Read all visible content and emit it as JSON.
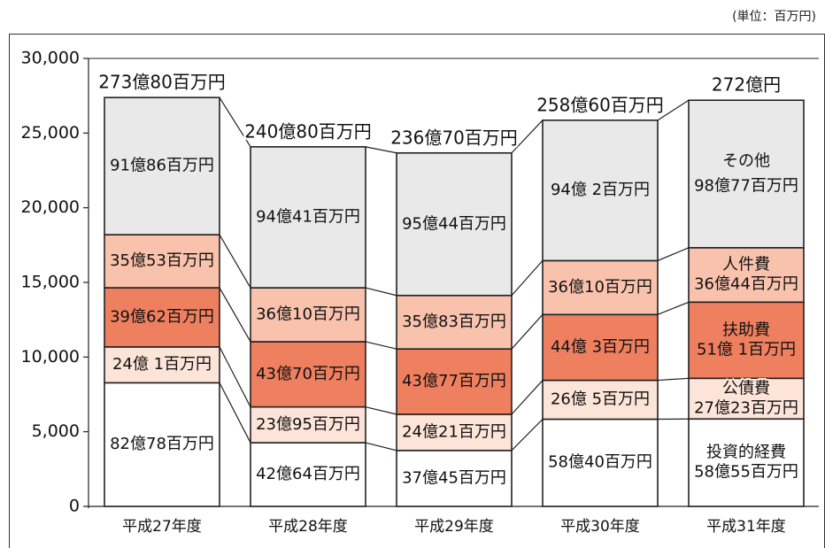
{
  "unit_label": "(単位：百万円)",
  "chart_data": {
    "type": "bar",
    "stacked": true,
    "title": "",
    "xlabel": "",
    "ylabel": "",
    "ylim": [
      0,
      30000
    ],
    "yticks": [
      "0",
      "5,000",
      "10,000",
      "15,000",
      "20,000",
      "25,000",
      "30,000"
    ],
    "yticks_values": [
      0,
      5000,
      10000,
      15000,
      20000,
      25000,
      30000
    ],
    "grid": false,
    "categories": [
      "平成27年度",
      "平成28年度",
      "平成29年度",
      "平成30年度",
      "平成31年度"
    ],
    "totals": [
      27380,
      24080,
      23670,
      25860,
      27200
    ],
    "total_labels": [
      "273億80百万円",
      "240億80百万円",
      "236億70百万円",
      "258億60百万円",
      "272億円"
    ],
    "series": [
      {
        "name": "投資的経費",
        "color": "#ffffff",
        "values": [
          8278,
          4264,
          3745,
          5840,
          5855
        ],
        "labels": [
          "82億78百万円",
          "42億64百万円",
          "37億45百万円",
          "58億40百万円",
          "58億55百万円"
        ]
      },
      {
        "name": "公債費",
        "color": "#fde4d8",
        "values": [
          2401,
          2395,
          2421,
          2605,
          2723
        ],
        "labels": [
          "24億 1百万円",
          "23億95百万円",
          "24億21百万円",
          "26億 5百万円",
          "27億23百万円"
        ]
      },
      {
        "name": "扶助費",
        "color": "#ee7f5f",
        "values": [
          3962,
          4370,
          4377,
          4403,
          5101
        ],
        "labels": [
          "39億62百万円",
          "43億70百万円",
          "43億77百万円",
          "44億 3百万円",
          "51億 1百万円"
        ]
      },
      {
        "name": "人件費",
        "color": "#f9c2ad",
        "values": [
          3553,
          3610,
          3583,
          3610,
          3644
        ],
        "labels": [
          "35億53百万円",
          "36億10百万円",
          "35億83百万円",
          "36億10百万円",
          "36億44百万円"
        ]
      },
      {
        "name": "その他",
        "color": "#e9e9e9",
        "values": [
          9186,
          9441,
          9544,
          9402,
          9877
        ],
        "labels": [
          "91億86百万円",
          "94億41百万円",
          "95億44百万円",
          "94億 2百万円",
          "98億77百万円"
        ]
      }
    ]
  }
}
